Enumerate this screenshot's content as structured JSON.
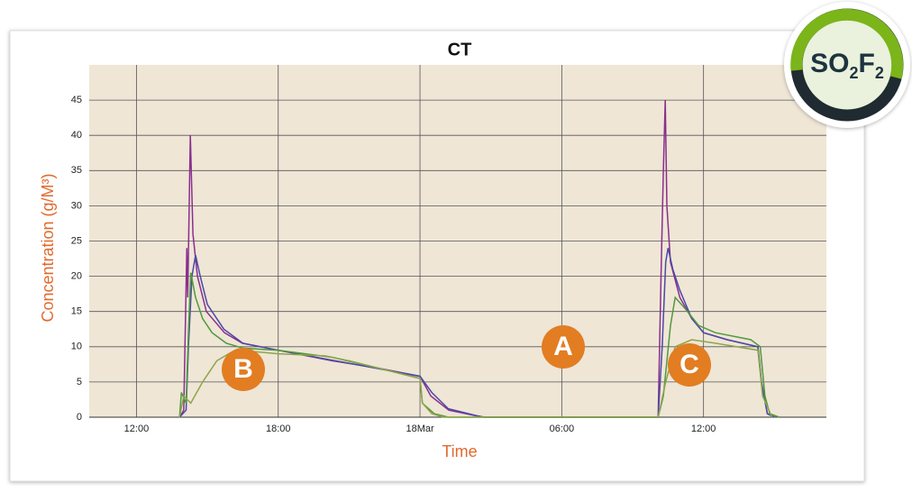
{
  "chart_data": {
    "type": "line",
    "title": "CT",
    "x_label": "Time",
    "y_label": "Concentration (g/M³)",
    "xlim": [
      10,
      41.2
    ],
    "ylim": [
      0,
      50
    ],
    "xticks": [
      {
        "value": 12,
        "label": "12:00"
      },
      {
        "value": 18,
        "label": "18:00"
      },
      {
        "value": 24,
        "label": "18Mar"
      },
      {
        "value": 30,
        "label": "06:00"
      },
      {
        "value": 36,
        "label": "12:00"
      }
    ],
    "yticks": [
      0,
      5,
      10,
      15,
      20,
      25,
      30,
      35,
      40,
      45
    ],
    "grid": true,
    "series": [
      {
        "color": "#8a2f8c",
        "x": [
          13.82,
          14.0,
          14.13,
          14.17,
          14.28,
          14.39,
          14.58,
          14.96,
          15.72,
          16.48,
          18.0,
          20.28,
          22.18,
          24.0,
          24.46,
          25.22,
          26.36,
          26.74,
          34.08,
          34.2,
          34.3,
          34.38,
          34.45,
          34.6,
          35.0,
          35.5,
          36.0,
          37.0,
          38.3,
          38.45,
          38.7,
          39.0
        ],
        "values": [
          0,
          1,
          24,
          17,
          40,
          26,
          20,
          15,
          12,
          10.5,
          9.5,
          8,
          7,
          5.8,
          3,
          1,
          0.2,
          0,
          0,
          20,
          35,
          45,
          30,
          22,
          17,
          14,
          12,
          11,
          10,
          5,
          0.5,
          0
        ]
      },
      {
        "color": "#4b4aa6",
        "x": [
          13.82,
          14.1,
          14.2,
          14.35,
          14.5,
          14.7,
          15.0,
          15.7,
          16.5,
          18.0,
          20.28,
          24.0,
          24.5,
          25.2,
          26.4,
          26.7,
          34.08,
          34.25,
          34.4,
          34.5,
          34.7,
          35.0,
          35.5,
          36.0,
          37.0,
          38.3,
          38.45,
          38.7,
          39.0
        ],
        "values": [
          0,
          1,
          10,
          20,
          23,
          20,
          16,
          12.5,
          10.5,
          9.5,
          8.1,
          5.8,
          3.5,
          1.2,
          0.2,
          0,
          0,
          10,
          22,
          24,
          21,
          18,
          14,
          12,
          11,
          10,
          5,
          0.5,
          0
        ]
      },
      {
        "color": "#4f9a3e",
        "x": [
          13.82,
          13.9,
          14.1,
          14.2,
          14.3,
          14.5,
          14.8,
          15.2,
          15.8,
          16.5,
          18.0,
          20.28,
          22.2,
          24.0,
          24.1,
          24.6,
          25.2,
          34.08,
          34.3,
          34.6,
          34.8,
          35.2,
          35.8,
          36.5,
          38.0,
          38.4,
          38.6,
          38.8,
          39.2
        ],
        "values": [
          0,
          3.5,
          2,
          12,
          20.5,
          17,
          14,
          12,
          10.5,
          9.8,
          9.5,
          8.5,
          7,
          5.5,
          2,
          0.5,
          0,
          0,
          3,
          13,
          17,
          15.5,
          13,
          12,
          11,
          10,
          3,
          0.5,
          0
        ]
      },
      {
        "color": "#8da54c",
        "x": [
          13.82,
          14.0,
          14.3,
          14.8,
          15.4,
          16.0,
          17.0,
          18.0,
          20.0,
          21.0,
          24.0,
          24.1,
          24.5,
          25.0,
          34.08,
          34.4,
          34.8,
          35.5,
          36.5,
          38.3,
          38.5,
          38.9
        ],
        "values": [
          0,
          3,
          2,
          5,
          8,
          9.2,
          9.3,
          9,
          8.7,
          8,
          5.5,
          2,
          0.5,
          0,
          0,
          5,
          10,
          11,
          10.5,
          9.5,
          3,
          0
        ]
      }
    ],
    "annotations": [
      "A",
      "B",
      "C"
    ]
  },
  "badge": {
    "parts": [
      "SO",
      "2",
      "F",
      "2"
    ]
  }
}
